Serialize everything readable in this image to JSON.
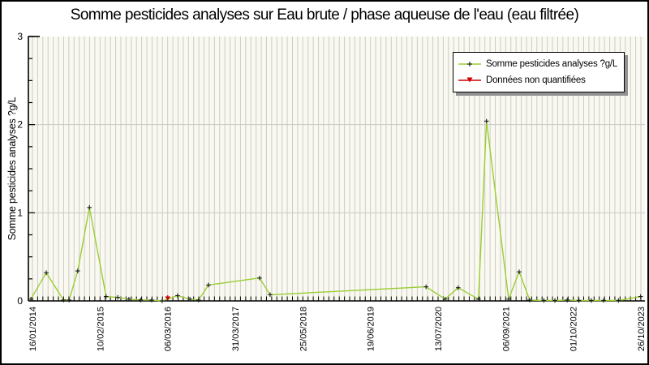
{
  "title": "Somme pesticides analyses sur Eau brute / phase aqueuse de l'eau (eau filtrée)",
  "colors": {
    "series_line": "#9acd32",
    "series_marker": "#1a1a1a",
    "non_quantified": "#cc0000",
    "plot_background": "#f9f9f1",
    "vertical_stripe": "#ccccc4",
    "horizontal_grid": "#c9c9c9",
    "axis": "#000000",
    "legend_shadow": "#919191"
  },
  "legend": {
    "items": [
      {
        "label": "Somme pesticides analyses ?g/L",
        "marker": "plus-on-line",
        "line_color": "#9acd32",
        "marker_color": "#1a1a1a"
      },
      {
        "label": "Données non quantifiées",
        "marker": "down-arrow-on-line",
        "line_color": "#cc0000",
        "marker_color": "#cc0000"
      }
    ]
  },
  "chart_data": {
    "type": "line",
    "title": "Somme pesticides analyses sur Eau brute / phase aqueuse de l'eau (eau filtrée)",
    "xlabel": "",
    "ylabel": "Somme pesticides analyses ?g/L",
    "ylim": [
      0,
      3
    ],
    "y_major_ticks": [
      0,
      1,
      2,
      3
    ],
    "y_minor_step": 0.25,
    "grid": "vertical stripes at every minor x tick; horizontal lines at y=1 and y=2",
    "legend_position": "top-right inside plot",
    "x_tick_labels": [
      "16/01/2014",
      "10/02/2015",
      "06/03/2016",
      "31/03/2017",
      "25/05/2018",
      "19/06/2019",
      "13/07/2020",
      "06/09/2021",
      "01/10/2022",
      "26/10/2023"
    ],
    "x_minor_per_label": 13,
    "series": [
      {
        "name": "Somme pesticides analyses ?g/L",
        "color": "#9acd32",
        "marker": "plus",
        "points": [
          {
            "t": 0.004,
            "approx_date": "01/2014",
            "value": 0.02
          },
          {
            "t": 0.029,
            "approx_date": "04/2014",
            "value": 0.32
          },
          {
            "t": 0.057,
            "approx_date": "07/2014",
            "value": 0.01
          },
          {
            "t": 0.066,
            "approx_date": "08/2014",
            "value": 0.01
          },
          {
            "t": 0.08,
            "approx_date": "10/2014",
            "value": 0.34
          },
          {
            "t": 0.099,
            "approx_date": "12/2014",
            "value": 1.06
          },
          {
            "t": 0.126,
            "approx_date": "03/2015",
            "value": 0.05
          },
          {
            "t": 0.145,
            "approx_date": "05/2015",
            "value": 0.04
          },
          {
            "t": 0.163,
            "approx_date": "08/2015",
            "value": 0.02
          },
          {
            "t": 0.182,
            "approx_date": "10/2015",
            "value": 0.01
          },
          {
            "t": 0.2,
            "approx_date": "12/2015",
            "value": 0.01
          },
          {
            "t": 0.217,
            "approx_date": "02/2016",
            "value": 0.0
          },
          {
            "t": 0.242,
            "approx_date": "05/2016",
            "value": 0.06
          },
          {
            "t": 0.262,
            "approx_date": "07/2016",
            "value": 0.02
          },
          {
            "t": 0.276,
            "approx_date": "09/2016",
            "value": 0.01
          },
          {
            "t": 0.292,
            "approx_date": "11/2016",
            "value": 0.18
          },
          {
            "t": 0.375,
            "approx_date": "09/2017",
            "value": 0.26
          },
          {
            "t": 0.392,
            "approx_date": "11/2017",
            "value": 0.07
          },
          {
            "t": 0.645,
            "approx_date": "05/2020",
            "value": 0.16
          },
          {
            "t": 0.676,
            "approx_date": "09/2020",
            "value": 0.02
          },
          {
            "t": 0.697,
            "approx_date": "11/2020",
            "value": 0.15
          },
          {
            "t": 0.73,
            "approx_date": "03/2021",
            "value": 0.02
          },
          {
            "t": 0.743,
            "approx_date": "05/2021",
            "value": 2.04
          },
          {
            "t": 0.779,
            "approx_date": "09/2021",
            "value": 0.02
          },
          {
            "t": 0.796,
            "approx_date": "11/2021",
            "value": 0.33
          },
          {
            "t": 0.813,
            "approx_date": "01/2022",
            "value": 0.01
          },
          {
            "t": 0.836,
            "approx_date": "03/2022",
            "value": 0.005
          },
          {
            "t": 0.854,
            "approx_date": "06/2022",
            "value": 0.005
          },
          {
            "t": 0.874,
            "approx_date": "08/2022",
            "value": 0.01
          },
          {
            "t": 0.893,
            "approx_date": "10/2022",
            "value": 0.005
          },
          {
            "t": 0.913,
            "approx_date": "01/2023",
            "value": 0.005
          },
          {
            "t": 0.933,
            "approx_date": "03/2023",
            "value": 0.005
          },
          {
            "t": 0.957,
            "approx_date": "06/2023",
            "value": 0.005
          },
          {
            "t": 0.993,
            "approx_date": "26/10/2023",
            "value": 0.05
          }
        ]
      },
      {
        "name": "Données non quantifiées",
        "color": "#cc0000",
        "marker": "down-arrow",
        "points": [
          {
            "t": 0.226,
            "approx_date": "06/03/2016",
            "value": 0.0
          }
        ]
      }
    ]
  }
}
